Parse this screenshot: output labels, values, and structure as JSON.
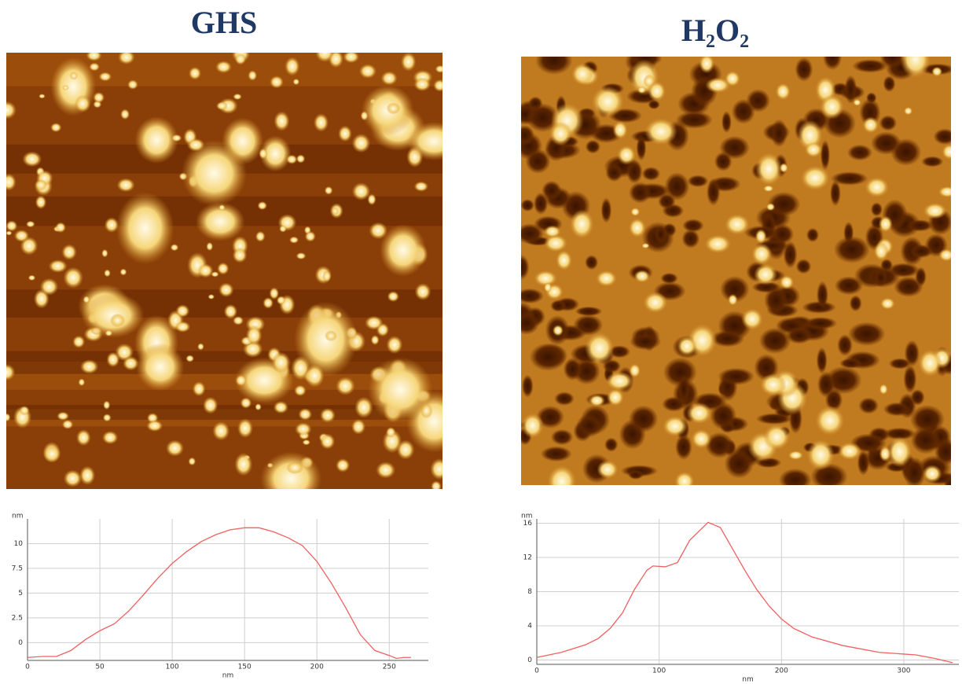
{
  "panels": [
    {
      "title": "GHS"
    },
    {
      "title": "H₂O₂"
    }
  ],
  "chart_data": [
    {
      "type": "line",
      "y_label": "nm",
      "x_label": "nm",
      "color": "#f06060",
      "grid": true,
      "x": [
        0,
        10,
        20,
        30,
        40,
        50,
        60,
        70,
        80,
        90,
        100,
        110,
        120,
        130,
        140,
        150,
        160,
        170,
        180,
        190,
        200,
        210,
        220,
        230,
        240,
        250,
        255,
        260,
        265
      ],
      "values": [
        -1.5,
        -1.4,
        -1.4,
        -0.8,
        0.3,
        1.2,
        1.9,
        3.2,
        4.8,
        6.5,
        8,
        9.2,
        10.2,
        10.9,
        11.4,
        11.6,
        11.6,
        11.2,
        10.6,
        9.8,
        8.2,
        6,
        3.5,
        0.8,
        -0.8,
        -1.3,
        -1.6,
        -1.5,
        -1.5
      ],
      "xlim": [
        0,
        277
      ],
      "xticks": [
        0,
        50,
        100,
        150,
        200,
        250
      ],
      "ylim": [
        -1.8,
        12.5
      ],
      "yticks": [
        0,
        2.5,
        5,
        7.5,
        10
      ]
    },
    {
      "type": "line",
      "y_label": "nm",
      "x_label": "nm",
      "color": "#f06060",
      "grid": true,
      "x": [
        0,
        20,
        40,
        50,
        60,
        70,
        80,
        90,
        95,
        105,
        115,
        125,
        140,
        150,
        160,
        170,
        180,
        190,
        200,
        210,
        225,
        250,
        280,
        300,
        310,
        325,
        340
      ],
      "values": [
        0.3,
        0.9,
        1.8,
        2.5,
        3.7,
        5.5,
        8.3,
        10.5,
        11,
        10.9,
        11.4,
        14,
        16.1,
        15.5,
        13,
        10.5,
        8.2,
        6.3,
        4.8,
        3.7,
        2.7,
        1.7,
        0.9,
        0.7,
        0.6,
        0.2,
        -0.3
      ],
      "xlim": [
        0,
        345
      ],
      "xticks": [
        0,
        100,
        200,
        300
      ],
      "ylim": [
        -0.5,
        16.5
      ],
      "yticks": [
        0,
        4,
        8,
        12,
        16
      ]
    }
  ]
}
